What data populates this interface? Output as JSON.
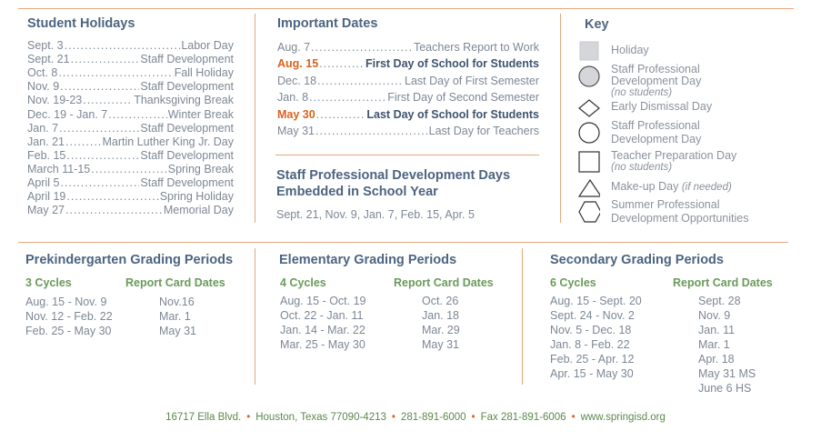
{
  "holidays": {
    "title": "Student Holidays",
    "items": [
      {
        "date": "Sept. 3",
        "event": "Labor Day"
      },
      {
        "date": "Sept. 21",
        "event": "Staff Development"
      },
      {
        "date": "Oct. 8",
        "event": "Fall Holiday"
      },
      {
        "date": "Nov. 9",
        "event": "Staff Development"
      },
      {
        "date": "Nov. 19-23",
        "event": "Thanksgiving Break"
      },
      {
        "date": "Dec. 19 - Jan. 7",
        "event": "Winter Break"
      },
      {
        "date": "Jan. 7",
        "event": "Staff Development"
      },
      {
        "date": "Jan. 21",
        "event": "Martin Luther King Jr. Day"
      },
      {
        "date": "Feb. 15",
        "event": "Staff Development"
      },
      {
        "date": "March 11-15",
        "event": "Spring Break"
      },
      {
        "date": "April 5",
        "event": "Staff Development"
      },
      {
        "date": "April 19",
        "event": "Spring Holiday"
      },
      {
        "date": "May 27",
        "event": "Memorial Day"
      }
    ]
  },
  "important": {
    "title": "Important Dates",
    "items": [
      {
        "date": "Aug. 7",
        "event": "Teachers Report to Work"
      },
      {
        "date": "Aug. 15",
        "event": "First Day of School for Students"
      },
      {
        "date": "Dec. 18",
        "event": "Last Day of First Semester"
      },
      {
        "date": "Jan. 8",
        "event": "First Day of Second Semester"
      },
      {
        "date": "May 30",
        "event": "Last Day of School for Students"
      },
      {
        "date": "May 31",
        "event": "Last Day for Teachers"
      }
    ],
    "embedded_title_1": "Staff Professional Development Days",
    "embedded_title_2": "Embedded in School Year",
    "embedded_dates": "Sept. 21, Nov. 9, Jan. 7, Feb. 15, Apr. 5"
  },
  "key": {
    "title": "Key",
    "holiday": "Holiday",
    "spd_1": "Staff Professional",
    "spd_2": "Development Day",
    "spd_sub": "(no students)",
    "early": "Early Dismissal Day",
    "spd2_1": "Staff Professional",
    "spd2_2": "Development Day",
    "prep": "Teacher Preparation Day",
    "prep_sub": "(no students)",
    "makeup": "Make-up Day ",
    "makeup_sub": "(if needed)",
    "summer_1": "Summer Professional",
    "summer_2": "Development Opportunities"
  },
  "prek": {
    "title": "Prekindergarten Grading Periods",
    "cycles": "3 Cycles",
    "rc": "Report Card Dates",
    "periods": [
      "Aug. 15 - Nov. 9",
      "Nov. 12 - Feb. 22",
      "Feb. 25 - May 30"
    ],
    "dates": [
      "Nov.16",
      "Mar. 1",
      "May 31"
    ]
  },
  "elem": {
    "title": "Elementary Grading Periods",
    "cycles": "4 Cycles",
    "rc": "Report Card Dates",
    "periods": [
      "Aug. 15 - Oct. 19",
      "Oct. 22 - Jan. 11",
      "Jan. 14 - Mar. 22",
      "Mar. 25 - May 30"
    ],
    "dates": [
      "Oct. 26",
      "Jan. 18",
      "Mar. 29",
      "May 31"
    ]
  },
  "sec": {
    "title": "Secondary Grading Periods",
    "cycles": "6 Cycles",
    "rc": "Report Card Dates",
    "periods": [
      "Aug. 15 - Sept. 20",
      "Sept. 24 - Nov. 2",
      "Nov. 5 - Dec. 18",
      "Jan. 8 - Feb. 22",
      "Feb. 25 - Apr. 12",
      "Apr. 15 - May 30"
    ],
    "dates": [
      "Sept. 28",
      "Nov. 9",
      "Jan. 11",
      "Mar. 1",
      "Apr. 18",
      "May 31 MS",
      "June 6 HS"
    ]
  },
  "footer": {
    "address": "16717 Ella Blvd.",
    "city": "Houston, Texas 77090-4213",
    "phone": "281-891-6000",
    "fax": "Fax 281-891-6006",
    "web": "www.springisd.org"
  },
  "colors": {
    "accent": "#d9621f",
    "heading": "#4d6480",
    "sub": "#6a9a5a",
    "rule": "#e8a77e"
  }
}
